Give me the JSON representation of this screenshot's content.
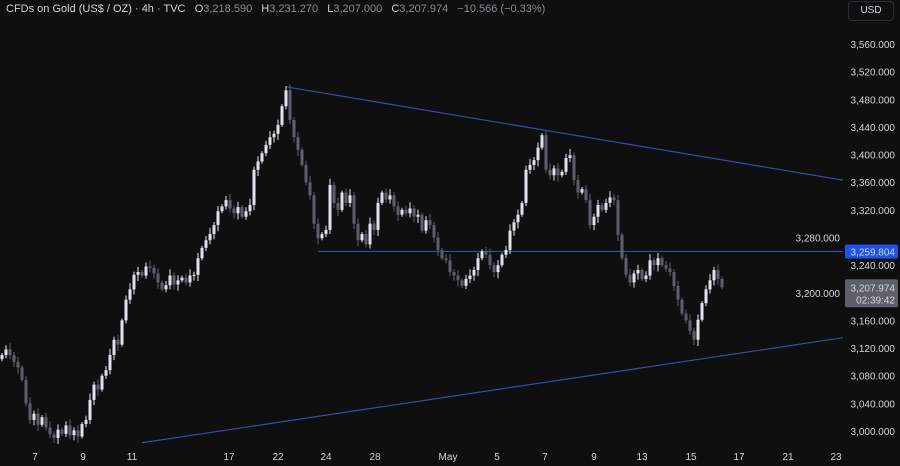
{
  "header": {
    "title": "CFDs on Gold (US$ / OZ) · 4h · TVC",
    "open_label": "O",
    "open": "3,218.590",
    "high_label": "H",
    "high": "3,231.270",
    "low_label": "L",
    "low": "3,207.000",
    "close_label": "C",
    "close": "3,207.974",
    "change": "−10.566 (−0.33%)"
  },
  "currency_button": "USD",
  "colors": {
    "background": "#0f0f0f",
    "up": "#e0e3eb",
    "down": "#5d606b",
    "line": "#2f4fa8",
    "level_badge": "#1e53e5",
    "price_badge": "#5d606b"
  },
  "chart_data": {
    "type": "candlestick",
    "ylim": [
      2980,
      3590
    ],
    "y_ticks": [
      "3,000.000",
      "3,040.000",
      "3,080.000",
      "3,120.000",
      "3,160.000",
      "3,200.000",
      "3,240.000",
      "3,280.000",
      "3,320.000",
      "3,360.000",
      "3,400.000",
      "3,440.000",
      "3,480.000",
      "3,520.000",
      "3,560.000"
    ],
    "y_tick_values": [
      3000,
      3040,
      3080,
      3120,
      3160,
      3200,
      3240,
      3280,
      3320,
      3360,
      3400,
      3440,
      3480,
      3520,
      3560
    ],
    "x_ticks": [
      {
        "label": "7",
        "candle": 8.25
      },
      {
        "label": "9",
        "candle": 20.25
      },
      {
        "label": "11",
        "candle": 32.5
      },
      {
        "label": "17",
        "candle": 56.75
      },
      {
        "label": "22",
        "candle": 69
      },
      {
        "label": "24",
        "candle": 81
      },
      {
        "label": "28",
        "candle": 93.25
      },
      {
        "label": "May",
        "candle": 111.5
      },
      {
        "label": "5",
        "candle": 123.75
      },
      {
        "label": "7",
        "candle": 135.75
      },
      {
        "label": "9",
        "candle": 148
      },
      {
        "label": "13",
        "candle": 160
      },
      {
        "label": "15",
        "candle": 172.25
      },
      {
        "label": "17",
        "candle": 184.25
      },
      {
        "label": "21",
        "candle": 196.5
      },
      {
        "label": "23",
        "candle": 208.5
      }
    ],
    "closes": [
      3110,
      3118,
      3110,
      3100,
      3092,
      3074,
      3040,
      3016,
      3025,
      3009,
      3020,
      3005,
      2995,
      2990,
      3002,
      2996,
      3008,
      2994,
      3001,
      2992,
      3010,
      3016,
      3045,
      3067,
      3060,
      3080,
      3088,
      3110,
      3132,
      3125,
      3160,
      3190,
      3205,
      3226,
      3230,
      3225,
      3238,
      3236,
      3228,
      3215,
      3205,
      3211,
      3225,
      3212,
      3218,
      3222,
      3215,
      3225,
      3226,
      3250,
      3265,
      3276,
      3285,
      3298,
      3318,
      3325,
      3334,
      3322,
      3315,
      3324,
      3310,
      3318,
      3327,
      3378,
      3390,
      3402,
      3414,
      3425,
      3430,
      3443,
      3470,
      3493,
      3450,
      3425,
      3407,
      3385,
      3360,
      3341,
      3300,
      3279,
      3285,
      3291,
      3356,
      3330,
      3320,
      3345,
      3330,
      3341,
      3300,
      3276,
      3285,
      3270,
      3300,
      3291,
      3330,
      3345,
      3335,
      3341,
      3325,
      3313,
      3320,
      3315,
      3322,
      3310,
      3313,
      3290,
      3305,
      3298,
      3280,
      3262,
      3250,
      3247,
      3230,
      3225,
      3218,
      3210,
      3220,
      3225,
      3233,
      3250,
      3260,
      3255,
      3240,
      3230,
      3240,
      3255,
      3262,
      3290,
      3302,
      3313,
      3330,
      3378,
      3385,
      3392,
      3410,
      3428,
      3378,
      3370,
      3380,
      3370,
      3375,
      3395,
      3399,
      3363,
      3345,
      3350,
      3334,
      3298,
      3310,
      3327,
      3320,
      3330,
      3338,
      3334,
      3284,
      3250,
      3226,
      3215,
      3228,
      3233,
      3220,
      3225,
      3247,
      3240,
      3250,
      3240,
      3235,
      3230,
      3210,
      3190,
      3170,
      3160,
      3145,
      3132,
      3161,
      3185,
      3205,
      3218,
      3233,
      3220,
      3207.974
    ],
    "lines": [
      {
        "name": "upper-trendline",
        "from": {
          "candle": 71,
          "price": 3498
        },
        "to": {
          "candle": 210.25,
          "price": 3363
        }
      },
      {
        "name": "horizontal-level",
        "from": {
          "candle": 79,
          "price": 3259.804
        },
        "to": {
          "candle": 210.25,
          "price": 3259.804
        }
      },
      {
        "name": "lower-trendline",
        "from": {
          "candle": 35,
          "price": 2983
        },
        "to": {
          "candle": 210.25,
          "price": 3135
        }
      }
    ],
    "level_label": "3,259.804",
    "last_price_label": "3,207.974",
    "countdown": "02:39:42"
  }
}
